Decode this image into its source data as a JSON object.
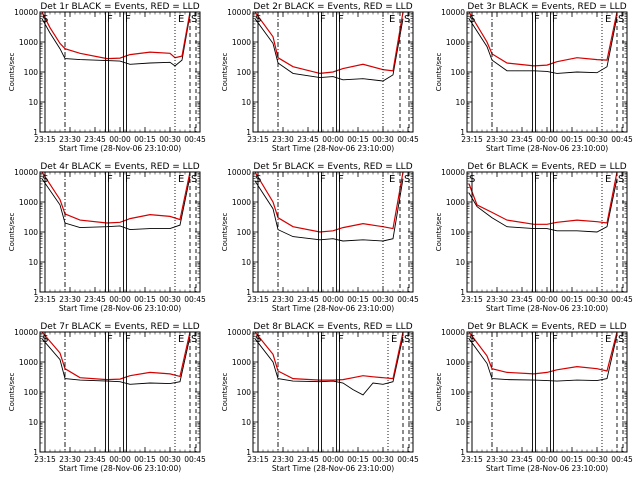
{
  "page": {
    "axes_template": {
      "xtick_labels": [
        "23:15",
        "23:30",
        "23:45",
        "00:00",
        "00:15",
        "00:30",
        "00:45"
      ],
      "ytick_labels": [
        "1",
        "10",
        "100",
        "1000",
        "10000"
      ],
      "ylabel": "Counts/sec",
      "xlabel": "Start Time (28-Nov-06 23:10:00)",
      "event_markers": [
        "S",
        "F",
        "F",
        "E",
        "S"
      ]
    }
  },
  "chart_data": [
    {
      "type": "line",
      "title": "Det 1r BLACK = Events, RED = LLD",
      "xlabel": "Start Time (28-Nov-06 23:10:00)",
      "ylabel": "Counts/sec",
      "xlim": [
        23.2,
        24.8
      ],
      "ylim": [
        1,
        10000
      ],
      "y_scale": "log",
      "markers": {
        "S1": 23.25,
        "dashdot": 23.45,
        "F1": 23.87,
        "F2": 24.05,
        "dotted": 24.55,
        "E": 24.62,
        "dashed": 24.7,
        "S2": 24.72
      },
      "series": [
        {
          "name": "Events",
          "color": "#000000",
          "x": [
            23.22,
            23.3,
            23.4,
            23.45,
            23.6,
            23.87,
            24.0,
            24.1,
            24.3,
            24.5,
            24.55,
            24.62,
            24.7
          ],
          "y": [
            6000,
            2000,
            600,
            280,
            260,
            240,
            230,
            180,
            200,
            210,
            160,
            250,
            8000
          ]
        },
        {
          "name": "LLD",
          "color": "#d40000",
          "x": [
            23.22,
            23.3,
            23.4,
            23.45,
            23.6,
            23.87,
            24.0,
            24.1,
            24.3,
            24.5,
            24.55,
            24.62,
            24.7
          ],
          "y": [
            10000,
            3000,
            900,
            600,
            420,
            280,
            290,
            380,
            460,
            420,
            300,
            340,
            10000
          ]
        }
      ]
    },
    {
      "type": "line",
      "title": "Det 2r BLACK = Events, RED = LLD",
      "xlabel": "Start Time (28-Nov-06 23:10:00)",
      "ylabel": "Counts/sec",
      "xlim": [
        23.2,
        24.8
      ],
      "ylim": [
        1,
        10000
      ],
      "y_scale": "log",
      "markers": {
        "S1": 23.25,
        "dashdot": 23.45,
        "F1": 23.87,
        "F2": 24.05,
        "dotted": 24.5,
        "E": 24.6,
        "dashed": 24.67,
        "S2": 24.72
      },
      "series": [
        {
          "name": "Events",
          "color": "#000000",
          "x": [
            23.22,
            23.4,
            23.45,
            23.6,
            23.87,
            24.0,
            24.1,
            24.3,
            24.5,
            24.6,
            24.7
          ],
          "y": [
            6000,
            900,
            200,
            90,
            65,
            70,
            55,
            60,
            50,
            80,
            6000
          ]
        },
        {
          "name": "LLD",
          "color": "#d40000",
          "x": [
            23.22,
            23.4,
            23.45,
            23.6,
            23.87,
            24.0,
            24.1,
            24.3,
            24.5,
            24.6,
            24.7
          ],
          "y": [
            10000,
            1500,
            300,
            150,
            90,
            100,
            130,
            180,
            120,
            110,
            10000
          ]
        }
      ]
    },
    {
      "type": "line",
      "title": "Det 3r BLACK = Events, RED = LLD",
      "xlabel": "Start Time (28-Nov-06 23:10:00)",
      "ylabel": "Counts/sec",
      "xlim": [
        23.2,
        24.8
      ],
      "ylim": [
        1,
        10000
      ],
      "y_scale": "log",
      "markers": {
        "S1": 23.25,
        "dashdot": 23.45,
        "F1": 23.87,
        "F2": 24.05,
        "dotted": 24.55,
        "E": 24.62,
        "dashed": 24.7,
        "S2": 24.72
      },
      "series": [
        {
          "name": "Events",
          "color": "#000000",
          "x": [
            23.22,
            23.4,
            23.45,
            23.6,
            23.87,
            24.0,
            24.1,
            24.3,
            24.5,
            24.6,
            24.7
          ],
          "y": [
            6000,
            700,
            250,
            110,
            110,
            105,
            90,
            100,
            95,
            150,
            7000
          ]
        },
        {
          "name": "LLD",
          "color": "#d40000",
          "x": [
            23.22,
            23.4,
            23.45,
            23.6,
            23.87,
            24.0,
            24.1,
            24.3,
            24.5,
            24.6,
            24.7
          ],
          "y": [
            10000,
            1000,
            400,
            200,
            160,
            170,
            220,
            300,
            260,
            250,
            10000
          ]
        }
      ]
    },
    {
      "type": "line",
      "title": "Det 4r BLACK = Events, RED = LLD",
      "xlabel": "Start Time (28-Nov-06 23:10:00)",
      "ylabel": "Counts/sec",
      "xlim": [
        23.2,
        24.8
      ],
      "ylim": [
        1,
        10000
      ],
      "y_scale": "log",
      "markers": {
        "S1": 23.25,
        "dashdot": 23.45,
        "F1": 23.87,
        "F2": 24.05,
        "dotted": 24.55,
        "E": 24.62,
        "dashed": 24.7,
        "S2": 24.72
      },
      "series": [
        {
          "name": "Events",
          "color": "#000000",
          "x": [
            23.22,
            23.4,
            23.45,
            23.6,
            23.87,
            24.0,
            24.1,
            24.3,
            24.5,
            24.6,
            24.7
          ],
          "y": [
            6000,
            800,
            200,
            140,
            150,
            160,
            120,
            130,
            130,
            170,
            7000
          ]
        },
        {
          "name": "LLD",
          "color": "#d40000",
          "x": [
            23.22,
            23.4,
            23.45,
            23.6,
            23.87,
            24.0,
            24.1,
            24.3,
            24.5,
            24.6,
            24.7
          ],
          "y": [
            10000,
            1200,
            400,
            250,
            200,
            210,
            280,
            380,
            330,
            260,
            10000
          ]
        }
      ]
    },
    {
      "type": "line",
      "title": "Det 5r BLACK = Events, RED = LLD",
      "xlabel": "Start Time (28-Nov-06 23:10:00)",
      "ylabel": "Counts/sec",
      "xlim": [
        23.2,
        24.8
      ],
      "ylim": [
        1,
        10000
      ],
      "y_scale": "log",
      "markers": {
        "S1": 23.25,
        "dashdot": 23.45,
        "F1": 23.87,
        "F2": 24.05,
        "dotted": 24.5,
        "E": 24.6,
        "dashed": 24.67,
        "S2": 24.72
      },
      "series": [
        {
          "name": "Events",
          "color": "#000000",
          "x": [
            23.22,
            23.4,
            23.45,
            23.6,
            23.87,
            24.0,
            24.1,
            24.3,
            24.5,
            24.6,
            24.7
          ],
          "y": [
            5000,
            600,
            120,
            70,
            55,
            60,
            50,
            55,
            50,
            60,
            6000
          ]
        },
        {
          "name": "LLD",
          "color": "#d40000",
          "x": [
            23.22,
            23.4,
            23.45,
            23.6,
            23.87,
            24.0,
            24.1,
            24.3,
            24.5,
            24.6,
            24.7
          ],
          "y": [
            10000,
            1000,
            300,
            150,
            100,
            110,
            140,
            190,
            150,
            130,
            10000
          ]
        }
      ]
    },
    {
      "type": "line",
      "title": "Det 6r BLACK = Events, RED = LLD",
      "xlabel": "Start Time (28-Nov-06 23:10:00)",
      "ylabel": "Counts/sec",
      "xlim": [
        23.2,
        24.8
      ],
      "ylim": [
        1,
        10000
      ],
      "y_scale": "log",
      "markers": {
        "S1": 23.25,
        "F1": 23.87,
        "F2": 24.05,
        "dotted": 24.55,
        "E": 24.62,
        "dashed": 24.7,
        "S2": 24.72
      },
      "series": [
        {
          "name": "Events",
          "color": "#000000",
          "x": [
            23.22,
            23.3,
            23.45,
            23.6,
            23.87,
            24.0,
            24.1,
            24.3,
            24.5,
            24.6,
            24.7
          ],
          "y": [
            2000,
            700,
            300,
            150,
            130,
            130,
            110,
            110,
            100,
            150,
            6000
          ]
        },
        {
          "name": "LLD",
          "color": "#d40000",
          "x": [
            23.22,
            23.3,
            23.45,
            23.6,
            23.87,
            24.0,
            24.1,
            24.3,
            24.5,
            24.6,
            24.7
          ],
          "y": [
            4000,
            800,
            450,
            250,
            180,
            180,
            210,
            250,
            220,
            200,
            10000
          ]
        }
      ]
    },
    {
      "type": "line",
      "title": "Det 7r BLACK = Events, RED = LLD",
      "xlabel": "Start Time (28-Nov-06 23:10:00)",
      "ylabel": "Counts/sec",
      "xlim": [
        23.2,
        24.8
      ],
      "ylim": [
        1,
        10000
      ],
      "y_scale": "log",
      "markers": {
        "S1": 23.25,
        "dashdot": 23.45,
        "F1": 23.87,
        "F2": 24.05,
        "dotted": 24.55,
        "E": 24.62,
        "dashed": 24.7,
        "S2": 24.72
      },
      "series": [
        {
          "name": "Events",
          "color": "#000000",
          "x": [
            23.22,
            23.4,
            23.45,
            23.6,
            23.87,
            24.0,
            24.1,
            24.3,
            24.5,
            24.6,
            24.7
          ],
          "y": [
            6000,
            1200,
            280,
            250,
            230,
            220,
            180,
            200,
            190,
            220,
            7000
          ]
        },
        {
          "name": "LLD",
          "color": "#d40000",
          "x": [
            23.22,
            23.4,
            23.45,
            23.6,
            23.87,
            24.0,
            24.1,
            24.3,
            24.5,
            24.6,
            24.7
          ],
          "y": [
            10000,
            2000,
            600,
            300,
            260,
            270,
            350,
            450,
            400,
            330,
            10000
          ]
        }
      ]
    },
    {
      "type": "line",
      "title": "Det 8r BLACK = Events, RED = LLD",
      "xlabel": "Start Time (28-Nov-06 23:10:00)",
      "ylabel": "Counts/sec",
      "xlim": [
        23.2,
        24.8
      ],
      "ylim": [
        1,
        10000
      ],
      "y_scale": "log",
      "markers": {
        "S1": 23.25,
        "dashdot": 23.45,
        "F1": 23.87,
        "F2": 24.05,
        "dotted": 24.55,
        "E": 24.62,
        "dashed": 24.7,
        "S2": 24.72
      },
      "series": [
        {
          "name": "Events",
          "color": "#000000",
          "x": [
            23.22,
            23.4,
            23.45,
            23.6,
            23.87,
            24.0,
            24.1,
            24.2,
            24.3,
            24.4,
            24.5,
            24.6,
            24.7
          ],
          "y": [
            6000,
            1000,
            280,
            230,
            220,
            230,
            200,
            120,
            80,
            200,
            180,
            220,
            7000
          ]
        },
        {
          "name": "LLD",
          "color": "#d40000",
          "x": [
            23.22,
            23.4,
            23.45,
            23.6,
            23.87,
            24.0,
            24.1,
            24.2,
            24.3,
            24.4,
            24.5,
            24.6,
            24.7
          ],
          "y": [
            10000,
            1800,
            500,
            280,
            250,
            250,
            260,
            300,
            350,
            320,
            300,
            280,
            10000
          ]
        }
      ]
    },
    {
      "type": "line",
      "title": "Det 9r BLACK = Events, RED = LLD",
      "xlabel": "Start Time (28-Nov-06 23:10:00)",
      "ylabel": "Counts/sec",
      "xlim": [
        23.2,
        24.8
      ],
      "ylim": [
        1,
        10000
      ],
      "y_scale": "log",
      "markers": {
        "S1": 23.25,
        "dashdot": 23.45,
        "F1": 23.87,
        "F2": 24.05,
        "dotted": 24.55,
        "E": 24.62,
        "dashed": 24.7,
        "S2": 24.72
      },
      "series": [
        {
          "name": "Events",
          "color": "#000000",
          "x": [
            23.22,
            23.4,
            23.45,
            23.6,
            23.87,
            24.0,
            24.1,
            24.3,
            24.5,
            24.6,
            24.7
          ],
          "y": [
            6000,
            900,
            280,
            260,
            250,
            240,
            230,
            250,
            240,
            280,
            8000
          ]
        },
        {
          "name": "LLD",
          "color": "#d40000",
          "x": [
            23.22,
            23.4,
            23.45,
            23.6,
            23.87,
            24.0,
            24.1,
            24.3,
            24.5,
            24.6,
            24.7
          ],
          "y": [
            10000,
            1600,
            600,
            450,
            400,
            450,
            550,
            700,
            600,
            500,
            10000
          ]
        }
      ]
    }
  ]
}
